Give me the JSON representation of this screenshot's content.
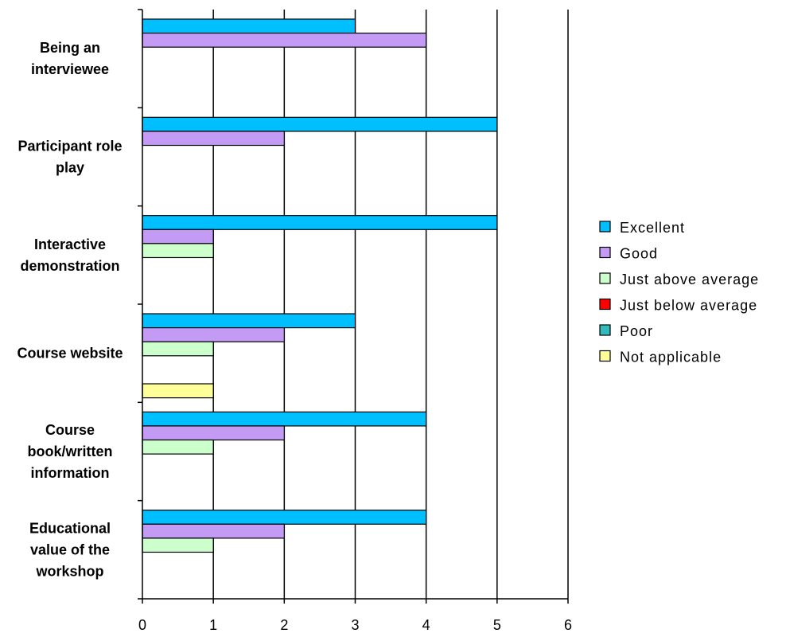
{
  "chart_data": {
    "type": "bar",
    "orientation": "horizontal",
    "categories": [
      "Being an interviewee",
      "Participant role play",
      "Interactive demonstration",
      "Course website",
      "Course book/written information",
      "Educational value of the workshop"
    ],
    "category_label_lines": [
      [
        "Being an",
        "interviewee"
      ],
      [
        "Participant role",
        "play"
      ],
      [
        "Interactive",
        "demonstration"
      ],
      [
        "Course website"
      ],
      [
        "Course",
        "book/written",
        "information"
      ],
      [
        "Educational",
        "value of the",
        "workshop"
      ]
    ],
    "series": [
      {
        "name": "Excellent",
        "color": "#00BFFF",
        "values": [
          3,
          5,
          5,
          3,
          4,
          4
        ]
      },
      {
        "name": "Good",
        "color": "#C39BF5",
        "values": [
          4,
          2,
          1,
          2,
          2,
          2
        ]
      },
      {
        "name": "Just above average",
        "color": "#CCFFCC",
        "values": [
          0,
          0,
          1,
          1,
          1,
          1
        ]
      },
      {
        "name": "Just below average",
        "color": "#FF0000",
        "values": [
          0,
          0,
          0,
          0,
          0,
          0
        ]
      },
      {
        "name": "Poor",
        "color": "#33BBBB",
        "values": [
          0,
          0,
          0,
          0,
          0,
          0
        ]
      },
      {
        "name": "Not applicable",
        "color": "#FFFF99",
        "values": [
          0,
          0,
          0,
          1,
          0,
          0
        ]
      }
    ],
    "xlim": [
      0,
      6
    ],
    "x_ticks": [
      "0",
      "1",
      "2",
      "3",
      "4",
      "5",
      "6"
    ],
    "vertical_gridlines": true,
    "legend_position": "right",
    "title": "",
    "xlabel": "",
    "ylabel": ""
  }
}
